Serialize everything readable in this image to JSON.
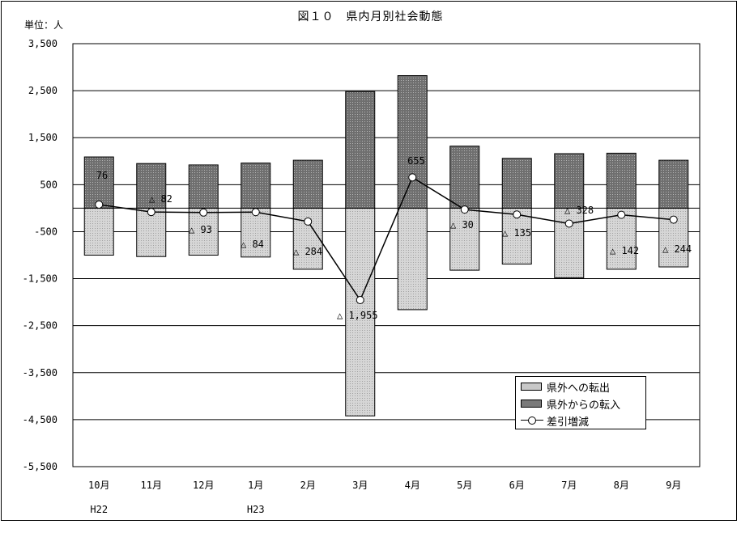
{
  "chart_data": {
    "type": "bar",
    "title": "図１０　県内月別社会動態",
    "unit_label": "単位：人",
    "categories": [
      "10月",
      "11月",
      "12月",
      "1月",
      "2月",
      "3月",
      "4月",
      "5月",
      "6月",
      "7月",
      "8月",
      "9月"
    ],
    "year_labels": [
      {
        "index": 0,
        "text": "H22"
      },
      {
        "index": 3,
        "text": "H23"
      }
    ],
    "ylim": [
      -5500,
      3500
    ],
    "yticks": [
      3500,
      2500,
      1500,
      500,
      -500,
      -1500,
      -2500,
      -3500,
      -4500,
      -5500
    ],
    "ytick_labels": [
      "3,500",
      "2,500",
      "1,500",
      "500",
      "-500",
      "-1,500",
      "-2,500",
      "-3,500",
      "-4,500",
      "-5,500"
    ],
    "grid": true,
    "legend_position": "bottom-right",
    "series": [
      {
        "name": "県外への転出",
        "kind": "bar",
        "color": "#c8c8c8",
        "values": [
          -1000,
          -1030,
          -1000,
          -1040,
          -1300,
          -4420,
          -2160,
          -1320,
          -1190,
          -1480,
          -1300,
          -1250
        ]
      },
      {
        "name": "県外からの転入",
        "kind": "bar",
        "color": "#7a7a7a",
        "values": [
          1090,
          950,
          920,
          960,
          1020,
          2480,
          2820,
          1320,
          1060,
          1160,
          1170,
          1020
        ]
      },
      {
        "name": "差引増減",
        "kind": "line",
        "color": "#000000",
        "values": [
          76,
          -82,
          -93,
          -84,
          -284,
          -1955,
          655,
          -30,
          -135,
          -328,
          -142,
          -244
        ],
        "labels": [
          "76",
          "△ 82",
          "△ 93",
          "△ 84",
          "△ 284",
          "△ 1,955",
          "655",
          "△ 30",
          "△ 135",
          "△ 328",
          "△ 142",
          "△ 244"
        ]
      }
    ]
  }
}
